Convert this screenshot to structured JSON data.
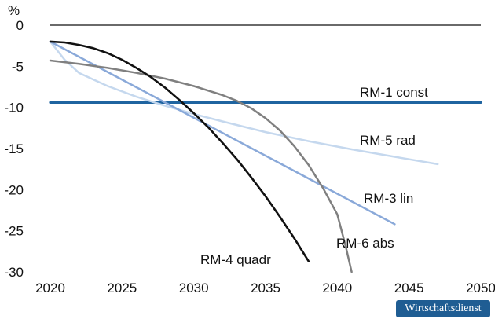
{
  "chart_data": {
    "type": "line",
    "title": "",
    "xlabel": "",
    "ylabel": "%",
    "xlim": [
      2020,
      2050
    ],
    "ylim": [
      -30,
      0
    ],
    "xticks": [
      2020,
      2025,
      2030,
      2035,
      2040,
      2045,
      2050
    ],
    "yticks": [
      0,
      -5,
      -10,
      -15,
      -20,
      -25,
      -30
    ],
    "grid": false,
    "legend": "inline labels",
    "series": [
      {
        "name": "RM-1 const",
        "color": "#1f64a0",
        "x": [
          2020,
          2050
        ],
        "y": [
          -9.4,
          -9.4
        ]
      },
      {
        "name": "RM-5 rad",
        "color": "#c5d8ee",
        "x": [
          2020,
          2021,
          2022,
          2024,
          2026,
          2028,
          2030,
          2032,
          2035,
          2038,
          2041,
          2044,
          2047
        ],
        "y": [
          -2,
          -4.2,
          -5.8,
          -7.4,
          -8.7,
          -9.8,
          -10.8,
          -11.7,
          -13.0,
          -14.1,
          -15.1,
          -16.0,
          -16.9
        ]
      },
      {
        "name": "RM-3 lin",
        "color": "#8aa9d9",
        "x": [
          2020,
          2044
        ],
        "y": [
          -2,
          -24.2
        ]
      },
      {
        "name": "RM-6 abs",
        "color": "#808080",
        "x": [
          2020,
          2022,
          2024,
          2026,
          2028,
          2030,
          2032,
          2033,
          2034,
          2035,
          2036,
          2037,
          2038,
          2039,
          2040,
          2040.6,
          2041
        ],
        "y": [
          -4.3,
          -4.7,
          -5.2,
          -5.8,
          -6.5,
          -7.4,
          -8.5,
          -9.2,
          -10.1,
          -11.3,
          -12.8,
          -14.7,
          -17.0,
          -19.8,
          -23.0,
          -27.0,
          -30.0
        ]
      },
      {
        "name": "RM-4 quadr",
        "color": "#111111",
        "x": [
          2020,
          2021,
          2022,
          2023,
          2024,
          2025,
          2026,
          2027,
          2028,
          2029,
          2030,
          2031,
          2032,
          2033,
          2034,
          2035,
          2036,
          2037,
          2038
        ],
        "y": [
          -2.0,
          -2.1,
          -2.4,
          -2.8,
          -3.4,
          -4.2,
          -5.2,
          -6.3,
          -7.6,
          -9.1,
          -10.7,
          -12.4,
          -14.3,
          -16.3,
          -18.5,
          -20.8,
          -23.3,
          -25.9,
          -28.7
        ]
      }
    ]
  },
  "branding": {
    "badge_text": "Wirtschaftsdienst",
    "badge_color": "#1f5d93"
  }
}
